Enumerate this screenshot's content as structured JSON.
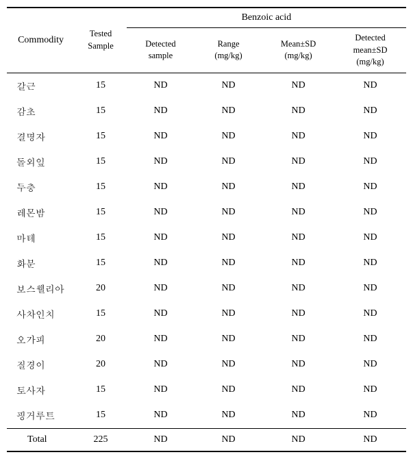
{
  "table": {
    "header": {
      "commodity": "Commodity",
      "tested_sample": "Tested\nSample",
      "group_label": "Benzoic acid",
      "detected_sample": "Detected\nsample",
      "range": "Range\n(mg/kg)",
      "mean_sd": "Mean±SD\n(mg/kg)",
      "detected_mean_sd": "Detected\nmean±SD\n(mg/kg)"
    },
    "rows": [
      {
        "commodity": "갈근",
        "tested": "15",
        "detected": "ND",
        "range": "ND",
        "mean": "ND",
        "dmean": "ND"
      },
      {
        "commodity": "감초",
        "tested": "15",
        "detected": "ND",
        "range": "ND",
        "mean": "ND",
        "dmean": "ND"
      },
      {
        "commodity": "결명자",
        "tested": "15",
        "detected": "ND",
        "range": "ND",
        "mean": "ND",
        "dmean": "ND"
      },
      {
        "commodity": "돌외잎",
        "tested": "15",
        "detected": "ND",
        "range": "ND",
        "mean": "ND",
        "dmean": "ND"
      },
      {
        "commodity": "두충",
        "tested": "15",
        "detected": "ND",
        "range": "ND",
        "mean": "ND",
        "dmean": "ND"
      },
      {
        "commodity": "레몬밤",
        "tested": "15",
        "detected": "ND",
        "range": "ND",
        "mean": "ND",
        "dmean": "ND"
      },
      {
        "commodity": "마테",
        "tested": "15",
        "detected": "ND",
        "range": "ND",
        "mean": "ND",
        "dmean": "ND"
      },
      {
        "commodity": "화분",
        "tested": "15",
        "detected": "ND",
        "range": "ND",
        "mean": "ND",
        "dmean": "ND"
      },
      {
        "commodity": "보스웰리아",
        "tested": "20",
        "detected": "ND",
        "range": "ND",
        "mean": "ND",
        "dmean": "ND"
      },
      {
        "commodity": "사차인치",
        "tested": "15",
        "detected": "ND",
        "range": "ND",
        "mean": "ND",
        "dmean": "ND"
      },
      {
        "commodity": "오가피",
        "tested": "20",
        "detected": "ND",
        "range": "ND",
        "mean": "ND",
        "dmean": "ND"
      },
      {
        "commodity": "질경이",
        "tested": "20",
        "detected": "ND",
        "range": "ND",
        "mean": "ND",
        "dmean": "ND"
      },
      {
        "commodity": "토사자",
        "tested": "15",
        "detected": "ND",
        "range": "ND",
        "mean": "ND",
        "dmean": "ND"
      },
      {
        "commodity": "핑거루트",
        "tested": "15",
        "detected": "ND",
        "range": "ND",
        "mean": "ND",
        "dmean": "ND"
      }
    ],
    "total": {
      "label": "Total",
      "tested": "225",
      "detected": "ND",
      "range": "ND",
      "mean": "ND",
      "dmean": "ND"
    }
  },
  "style": {
    "font_family": "Times New Roman, Batang, serif",
    "font_size_body": 14,
    "font_size_sub": 12.5,
    "border_color": "#000000",
    "background_color": "#ffffff",
    "text_color": "#000000"
  }
}
